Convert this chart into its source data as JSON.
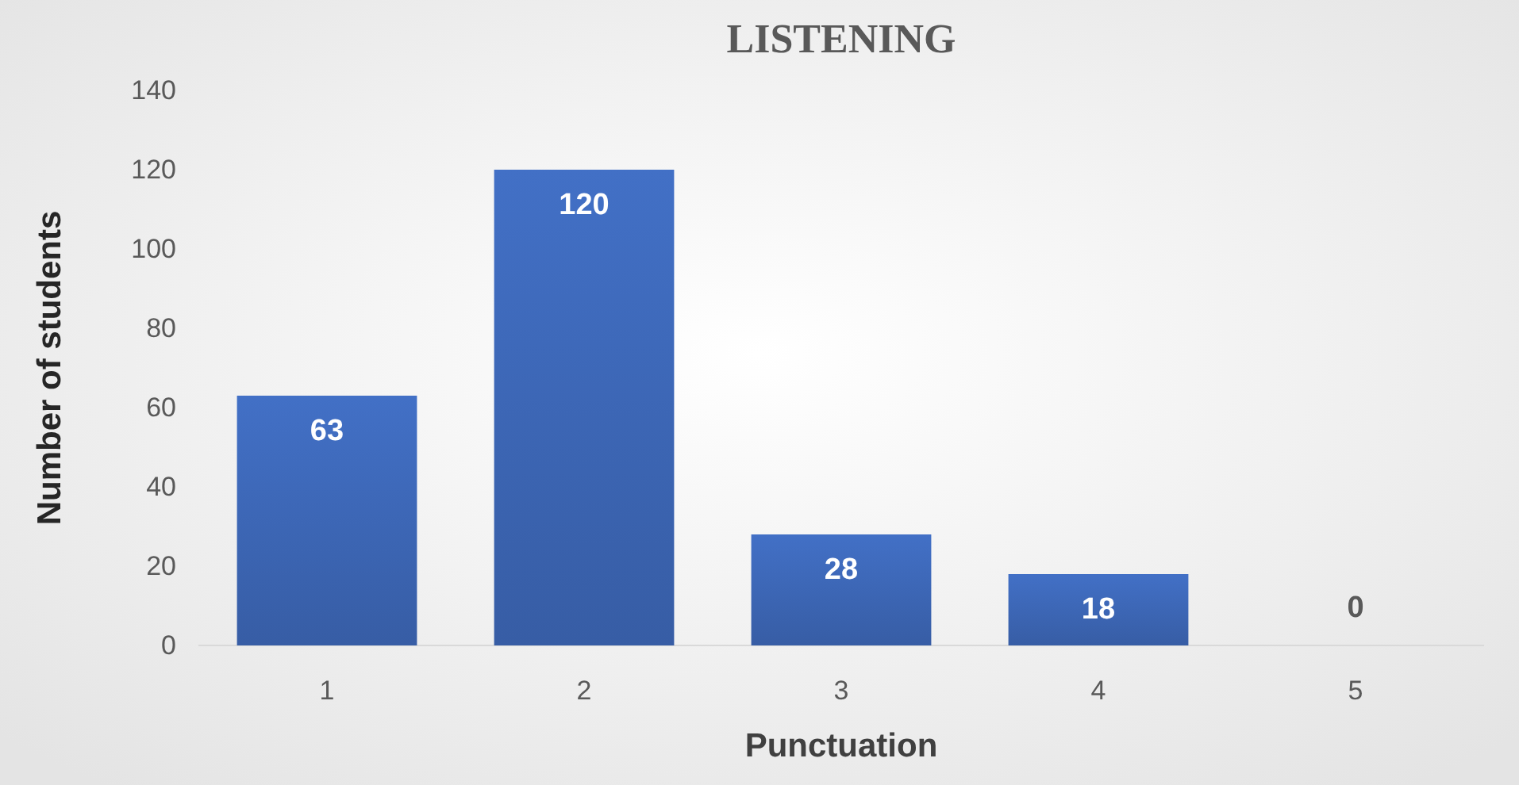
{
  "chart_data": {
    "type": "bar",
    "title": "LISTENING",
    "xlabel": "Punctuation",
    "ylabel": "Number of students",
    "categories": [
      "1",
      "2",
      "3",
      "4",
      "5"
    ],
    "values": [
      63,
      120,
      28,
      18,
      0
    ],
    "color": "#3d68b8",
    "ylim": [
      0,
      140
    ],
    "yticks": [
      0,
      20,
      40,
      60,
      80,
      100,
      120,
      140
    ],
    "data_labels": true
  }
}
